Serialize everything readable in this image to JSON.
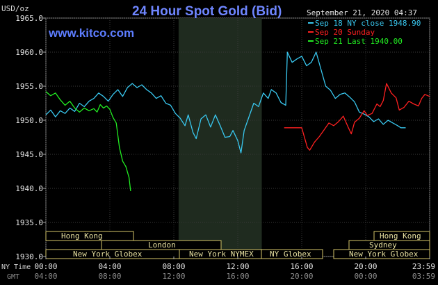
{
  "header": {
    "title": "24 Hour Spot Gold (Bid)",
    "unit": "USD/oz",
    "site": "www.kitco.com",
    "timestamp": "September 21, 2020 04:37"
  },
  "legend": [
    {
      "label": "Sep 18 NY close 1948.90",
      "color": "#39c8f0"
    },
    {
      "label": "Sep 20 Sunday",
      "color": "#ff2020"
    },
    {
      "label": "Sep 21 Last 1940.00",
      "color": "#22ee22"
    }
  ],
  "axis_labels": {
    "nytime": "NY Time",
    "gmt": "GMT"
  },
  "market_labels": {
    "hong_kong_left": "Hong Kong",
    "london": "London",
    "ny_globex_left": "New York Globex",
    "ny_nymex": "New York NYMEX",
    "ny_globex_mid": "NY Globex",
    "hong_kong_right": "Hong Kong",
    "sydney": "Sydney",
    "ny_globex_right": "New York Globex"
  },
  "chart_data": {
    "type": "line",
    "title": "24 Hour Spot Gold (Bid)",
    "ylabel": "USD/oz",
    "ylim": [
      1930,
      1965
    ],
    "x_range_hours": [
      0,
      24
    ],
    "y_ticks": [
      "1965.0",
      "1960.0",
      "1955.0",
      "1950.0",
      "1945.0",
      "1940.0",
      "1935.0",
      "1930.0"
    ],
    "x_ticks_ny": [
      "00:00",
      "04:00",
      "08:00",
      "12:00",
      "16:00",
      "20:00",
      "23:59"
    ],
    "x_ticks_gmt": [
      "04:00",
      "08:00",
      "12:00",
      "16:00",
      "20:00",
      "00:00",
      "03:59"
    ],
    "x_tick_hours": [
      0,
      4,
      8,
      12,
      16,
      20,
      24
    ],
    "highlight_hours": [
      8.3,
      13.5
    ],
    "grid": true,
    "series": [
      {
        "name": "Sep 18 NY close 1948.90",
        "color": "#39c8f0",
        "points": [
          [
            0,
            1950.8
          ],
          [
            0.3,
            1951.5
          ],
          [
            0.6,
            1950.5
          ],
          [
            0.9,
            1951.4
          ],
          [
            1.2,
            1951.0
          ],
          [
            1.5,
            1951.8
          ],
          [
            1.8,
            1951.3
          ],
          [
            2.1,
            1952.5
          ],
          [
            2.4,
            1952.0
          ],
          [
            2.7,
            1952.8
          ],
          [
            3.0,
            1953.2
          ],
          [
            3.3,
            1954.0
          ],
          [
            3.6,
            1953.5
          ],
          [
            3.9,
            1952.8
          ],
          [
            4.2,
            1953.8
          ],
          [
            4.5,
            1954.5
          ],
          [
            4.8,
            1953.5
          ],
          [
            5.1,
            1954.8
          ],
          [
            5.4,
            1955.4
          ],
          [
            5.7,
            1954.8
          ],
          [
            6.0,
            1955.2
          ],
          [
            6.3,
            1954.5
          ],
          [
            6.6,
            1954.0
          ],
          [
            6.9,
            1953.2
          ],
          [
            7.2,
            1953.6
          ],
          [
            7.5,
            1952.5
          ],
          [
            7.8,
            1952.2
          ],
          [
            8.1,
            1951.0
          ],
          [
            8.4,
            1950.3
          ],
          [
            8.7,
            1949.2
          ],
          [
            8.9,
            1950.8
          ],
          [
            9.2,
            1948.2
          ],
          [
            9.4,
            1947.3
          ],
          [
            9.7,
            1950.2
          ],
          [
            10.0,
            1950.8
          ],
          [
            10.3,
            1949.0
          ],
          [
            10.6,
            1950.8
          ],
          [
            10.9,
            1949.2
          ],
          [
            11.2,
            1947.5
          ],
          [
            11.5,
            1947.6
          ],
          [
            11.7,
            1948.5
          ],
          [
            12.0,
            1947.0
          ],
          [
            12.2,
            1945.2
          ],
          [
            12.4,
            1948.5
          ],
          [
            12.7,
            1950.5
          ],
          [
            13.0,
            1952.5
          ],
          [
            13.3,
            1952.0
          ],
          [
            13.6,
            1954.0
          ],
          [
            13.9,
            1953.2
          ],
          [
            14.1,
            1954.5
          ],
          [
            14.4,
            1954.0
          ],
          [
            14.7,
            1952.6
          ],
          [
            15.0,
            1952.2
          ],
          [
            15.1,
            1960.0
          ],
          [
            15.4,
            1958.5
          ],
          [
            15.7,
            1959.0
          ],
          [
            16.0,
            1959.4
          ],
          [
            16.3,
            1958.0
          ],
          [
            16.6,
            1958.5
          ],
          [
            16.9,
            1960.0
          ],
          [
            17.2,
            1957.5
          ],
          [
            17.5,
            1955.0
          ],
          [
            17.8,
            1954.4
          ],
          [
            18.1,
            1953.2
          ],
          [
            18.4,
            1953.8
          ],
          [
            18.7,
            1954.0
          ],
          [
            19.0,
            1953.4
          ],
          [
            19.3,
            1952.7
          ],
          [
            19.6,
            1951.2
          ],
          [
            19.9,
            1950.9
          ],
          [
            20.2,
            1950.5
          ],
          [
            20.5,
            1949.8
          ],
          [
            20.8,
            1950.2
          ],
          [
            21.1,
            1949.4
          ],
          [
            21.4,
            1950.0
          ],
          [
            21.7,
            1949.6
          ],
          [
            22.0,
            1949.2
          ],
          [
            22.2,
            1948.9
          ],
          [
            22.5,
            1948.9
          ]
        ]
      },
      {
        "name": "Sep 20 Sunday",
        "color": "#ff2020",
        "points": [
          [
            14.9,
            1948.9
          ],
          [
            15.5,
            1948.9
          ],
          [
            16.0,
            1948.9
          ],
          [
            16.35,
            1946.0
          ],
          [
            16.5,
            1945.6
          ],
          [
            16.8,
            1946.8
          ],
          [
            17.1,
            1947.6
          ],
          [
            17.4,
            1948.6
          ],
          [
            17.7,
            1949.6
          ],
          [
            18.0,
            1949.2
          ],
          [
            18.3,
            1949.8
          ],
          [
            18.6,
            1950.6
          ],
          [
            18.9,
            1949.0
          ],
          [
            19.1,
            1948.0
          ],
          [
            19.3,
            1949.7
          ],
          [
            19.6,
            1950.3
          ],
          [
            19.9,
            1951.4
          ],
          [
            20.1,
            1950.7
          ],
          [
            20.4,
            1951.0
          ],
          [
            20.7,
            1952.4
          ],
          [
            20.9,
            1952.0
          ],
          [
            21.1,
            1952.9
          ],
          [
            21.3,
            1955.4
          ],
          [
            21.6,
            1954.0
          ],
          [
            21.9,
            1953.3
          ],
          [
            22.1,
            1951.5
          ],
          [
            22.4,
            1951.9
          ],
          [
            22.7,
            1952.8
          ],
          [
            23.0,
            1952.4
          ],
          [
            23.3,
            1952.1
          ],
          [
            23.5,
            1953.2
          ],
          [
            23.7,
            1953.8
          ],
          [
            23.99,
            1953.5
          ]
        ]
      },
      {
        "name": "Sep 21 Last 1940.00",
        "color": "#22ee22",
        "points": [
          [
            0,
            1954.2
          ],
          [
            0.3,
            1953.6
          ],
          [
            0.6,
            1954.0
          ],
          [
            0.9,
            1953.0
          ],
          [
            1.2,
            1952.2
          ],
          [
            1.5,
            1952.8
          ],
          [
            1.8,
            1951.8
          ],
          [
            2.1,
            1951.2
          ],
          [
            2.4,
            1951.8
          ],
          [
            2.7,
            1951.4
          ],
          [
            3.0,
            1951.7
          ],
          [
            3.2,
            1951.2
          ],
          [
            3.4,
            1952.3
          ],
          [
            3.6,
            1951.8
          ],
          [
            3.8,
            1952.1
          ],
          [
            4.0,
            1951.6
          ],
          [
            4.2,
            1950.4
          ],
          [
            4.4,
            1949.6
          ],
          [
            4.6,
            1946.0
          ],
          [
            4.8,
            1944.0
          ],
          [
            5.0,
            1943.2
          ],
          [
            5.2,
            1941.6
          ],
          [
            5.3,
            1939.6
          ]
        ]
      }
    ]
  }
}
